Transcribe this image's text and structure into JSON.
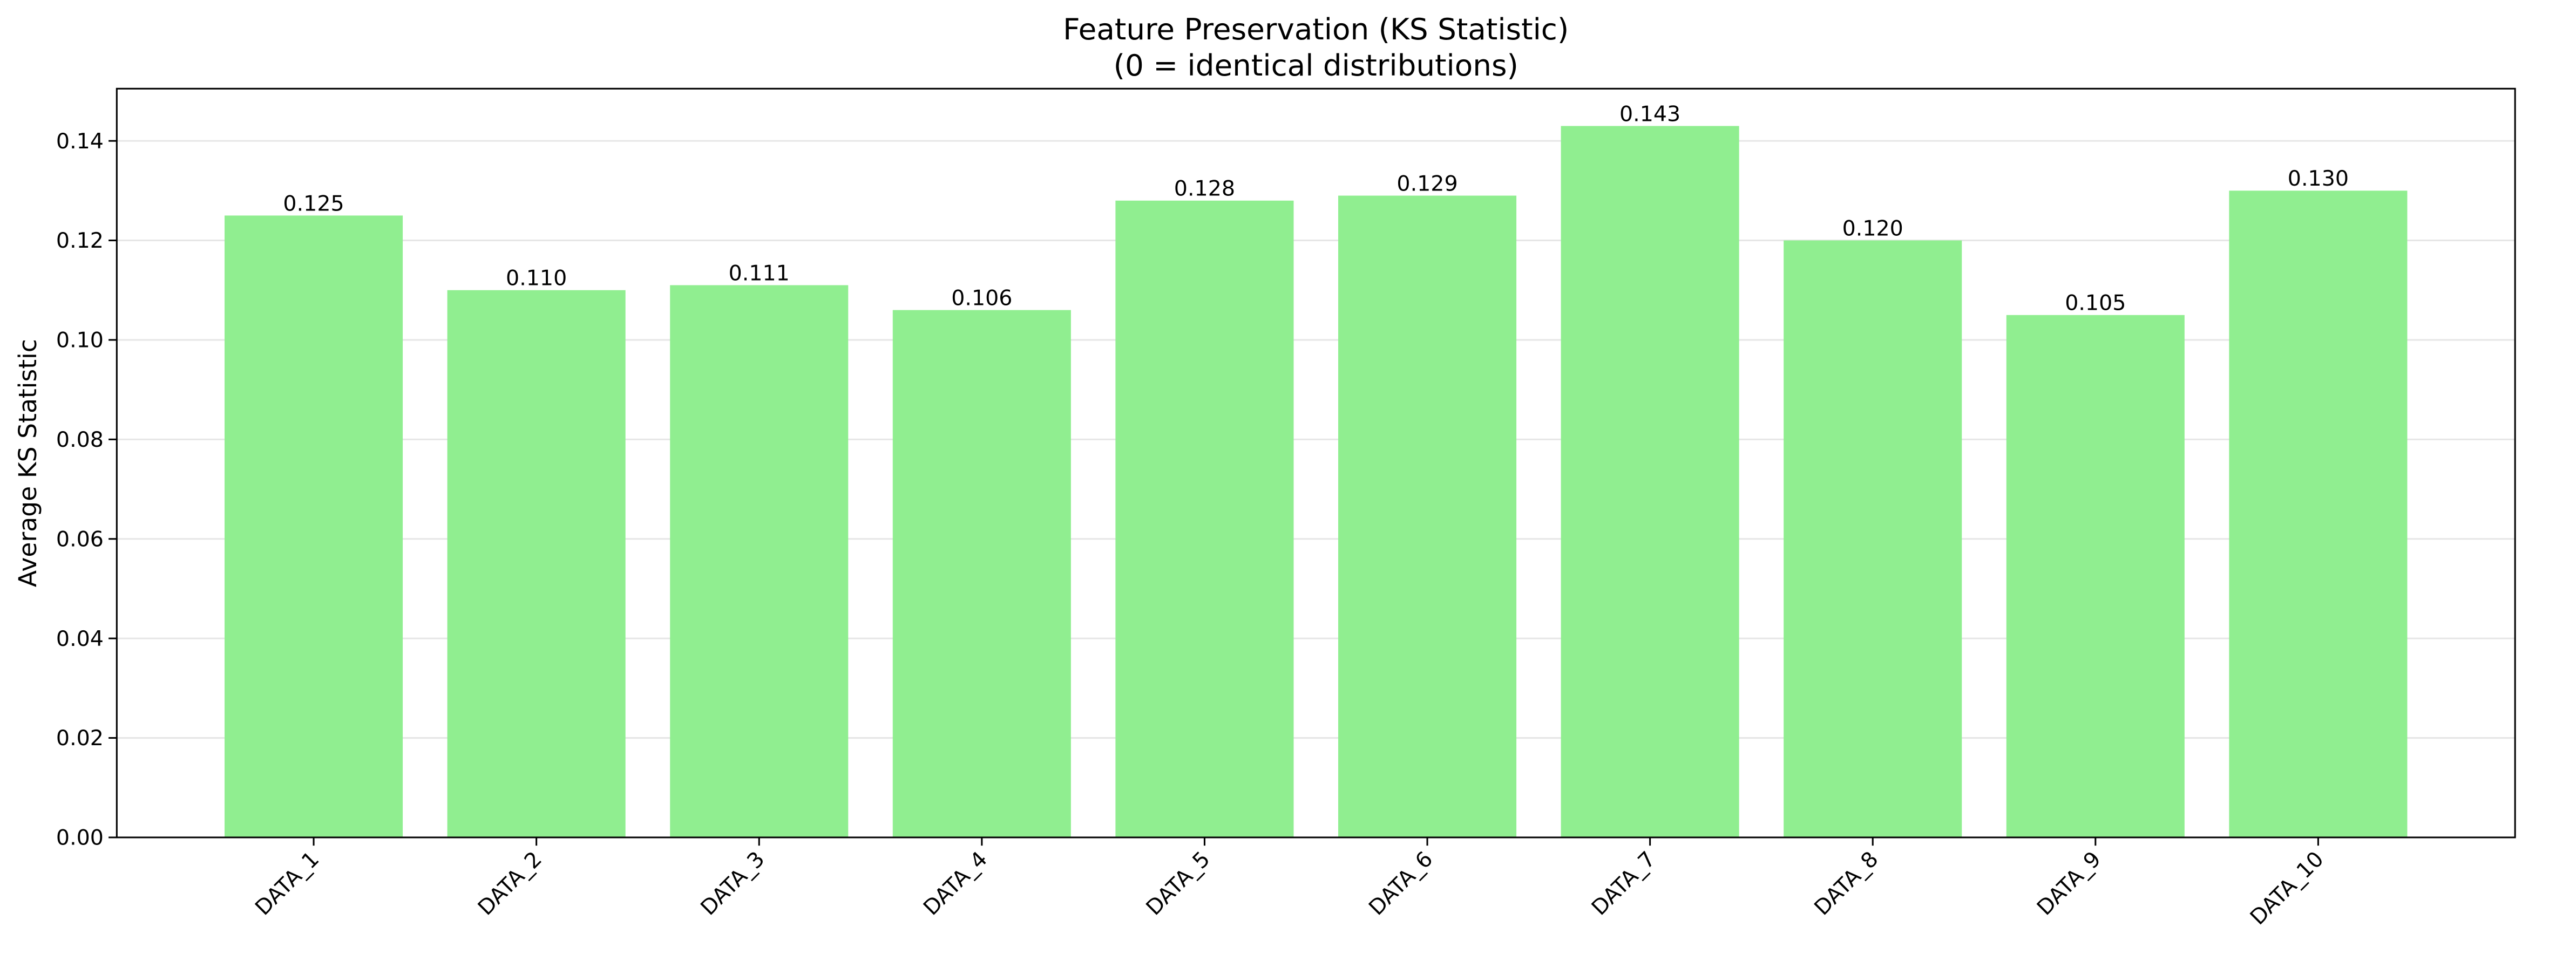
{
  "chart_data": {
    "type": "bar",
    "title": "Feature Preservation (KS Statistic)",
    "subtitle": "(0 = identical distributions)",
    "y_label": "Average KS Statistic",
    "categories": [
      "DATA_1",
      "DATA_2",
      "DATA_3",
      "DATA_4",
      "DATA_5",
      "DATA_6",
      "DATA_7",
      "DATA_8",
      "DATA_9",
      "DATA_10"
    ],
    "values": [
      0.125,
      0.11,
      0.111,
      0.106,
      0.128,
      0.129,
      0.143,
      0.12,
      0.105,
      0.13
    ],
    "value_labels": [
      "0.125",
      "0.110",
      "0.111",
      "0.106",
      "0.128",
      "0.129",
      "0.143",
      "0.120",
      "0.105",
      "0.130"
    ],
    "color": "#90ee90",
    "ylim": [
      0,
      0.1505
    ],
    "yticks": [
      {
        "value": 0,
        "label": "0.00"
      },
      {
        "value": 0.02,
        "label": "0.02"
      },
      {
        "value": 0.04,
        "label": "0.04"
      },
      {
        "value": 0.06,
        "label": "0.06"
      },
      {
        "value": 0.08,
        "label": "0.08"
      },
      {
        "value": 0.1,
        "label": "0.10"
      },
      {
        "value": 0.12,
        "label": "0.12"
      },
      {
        "value": 0.14,
        "label": "0.14"
      }
    ],
    "grid": true
  }
}
